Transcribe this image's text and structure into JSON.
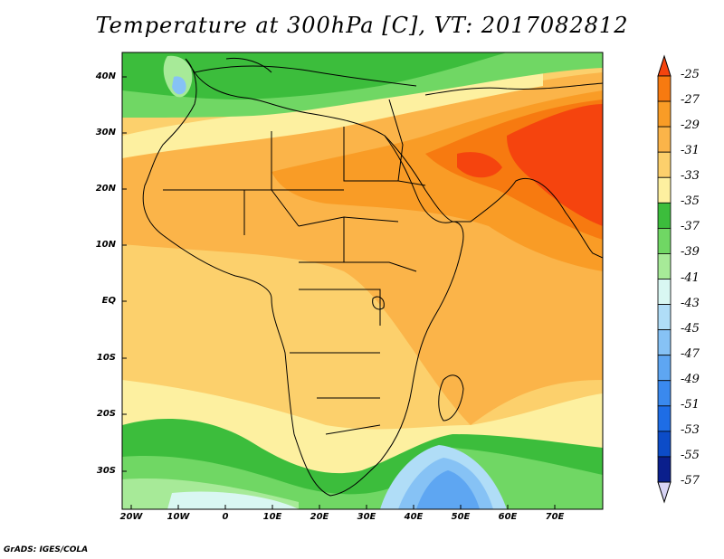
{
  "title": "Temperature at 300hPa [C], VT: 2017082812",
  "footer": "GrADS: IGES/COLA",
  "map": {
    "lat_labels": [
      "40N",
      "30N",
      "20N",
      "10N",
      "EQ",
      "10S",
      "20S",
      "30S"
    ],
    "lon_labels": [
      "20W",
      "10W",
      "0",
      "10E",
      "20E",
      "30E",
      "40E",
      "50E",
      "60E",
      "70E"
    ]
  },
  "colorbar": {
    "labels": [
      "-25",
      "-27",
      "-29",
      "-31",
      "-33",
      "-35",
      "-37",
      "-39",
      "-41",
      "-43",
      "-45",
      "-47",
      "-49",
      "-51",
      "-53",
      "-55",
      "-57"
    ],
    "colors": [
      "#f5440e",
      "#f77a10",
      "#f99c26",
      "#fbb449",
      "#fcd06c",
      "#fdf0a0",
      "#3cbd3c",
      "#70d764",
      "#a7ea98",
      "#d9f7f2",
      "#b0ddf7",
      "#86c2f5",
      "#5ea6f2",
      "#3a89ee",
      "#1e6de6",
      "#0c4cc8",
      "#0a1f8c"
    ]
  },
  "colors": {
    "ocean_base": "#fcd06c",
    "hot": "#f5440e",
    "cold_green": "#3cbd3c",
    "cold_blue": "#3a89ee"
  }
}
